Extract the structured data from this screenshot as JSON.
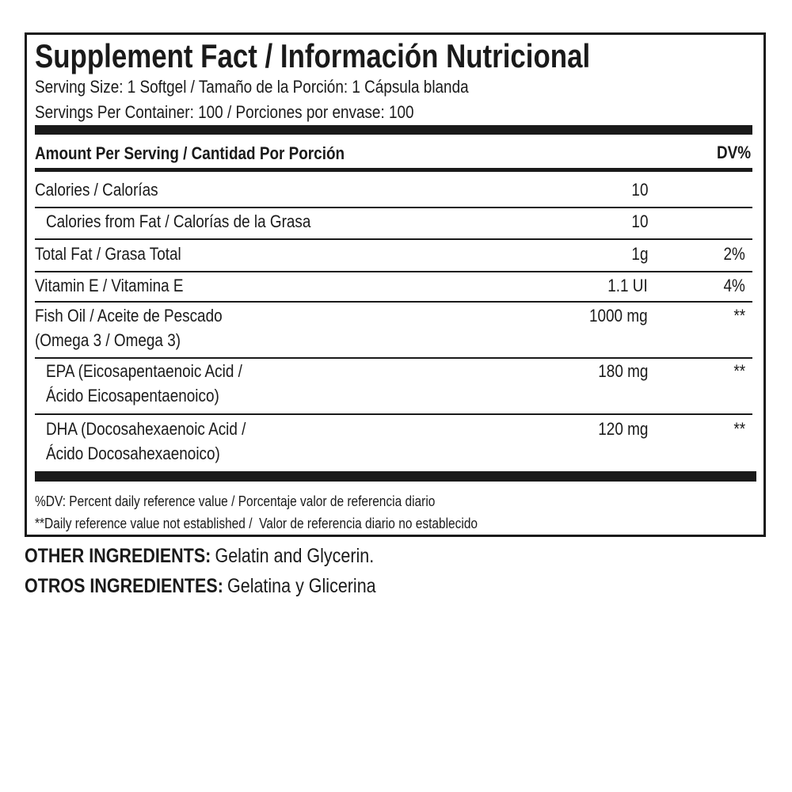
{
  "title": "Supplement Fact / Información Nutricional",
  "serving_size": "Serving Size: 1 Softgel / Tamaño de la Porción: 1 Cápsula blanda",
  "servings_per_container": "Servings Per Container: 100 / Porciones por envase: 100",
  "header": {
    "amount": "Amount Per Serving / Cantidad Por Porción",
    "dv": "DV%"
  },
  "rows": [
    {
      "name": [
        "Calories / Calorías"
      ],
      "amount": "10"
    },
    {
      "name": [
        "Calories from Fat / Calorías de la Grasa"
      ],
      "amount": "10"
    },
    {
      "name": [
        "Total Fat / Grasa Total"
      ],
      "amount": "1g",
      "dv": "2%"
    },
    {
      "name": [
        "Vitamin E / Vitamina E"
      ],
      "amount": "1.1 UI",
      "dv": "4%"
    },
    {
      "name": [
        "Fish Oil / Aceite de Pescado",
        "(Omega 3 / Omega 3)"
      ],
      "amount": "1000 mg",
      "dv": "**"
    },
    {
      "name": [
        "EPA (Eicosapentaenoic Acid /",
        "Ácido Eicosapentaenoico)"
      ],
      "amount": "180 mg",
      "dv": "**"
    },
    {
      "name": [
        "DHA (Docosahexaenoic Acid /",
        "Ácido Docosahexaenoico)"
      ],
      "amount": "120 mg",
      "dv": "**"
    }
  ],
  "footnotes": [
    "%DV: Percent daily reference value / Porcentaje valor de referencia diario",
    "**Daily reference value not established /  Valor de referencia diario no establecido"
  ],
  "ingredients": [
    {
      "label": "OTHER INGREDIENTS:",
      "text": "Gelatin and Glycerin."
    },
    {
      "label": "OTROS INGREDIENTES:",
      "text": "Gelatina y Glicerina"
    }
  ]
}
